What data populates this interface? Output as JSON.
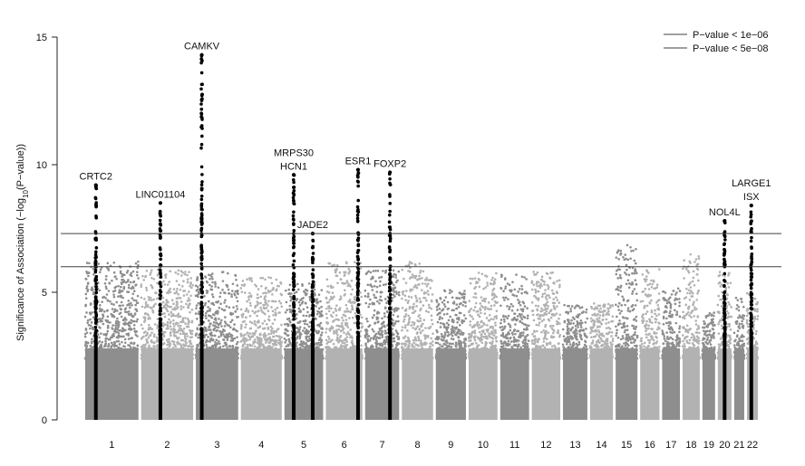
{
  "chart_data": {
    "type": "scatter",
    "subtype": "manhattan",
    "title": "",
    "xlabel": "",
    "ylabel_prefix": "Significance of Association (−log",
    "ylabel_sub": "10",
    "ylabel_suffix": "(P−value))",
    "ylim": [
      0,
      15
    ],
    "yticks": [
      0,
      5,
      10,
      15
    ],
    "thresholds": [
      {
        "label": "P−value < 1e−06",
        "value": 6.0
      },
      {
        "label": "P−value < 5e−08",
        "value": 7.3
      }
    ],
    "chromosomes": [
      {
        "label": "1",
        "rel": 249,
        "max": 6.2,
        "shade": "dark"
      },
      {
        "label": "2",
        "rel": 243,
        "max": 5.9,
        "shade": "light"
      },
      {
        "label": "3",
        "rel": 198,
        "max": 5.8,
        "shade": "dark"
      },
      {
        "label": "4",
        "rel": 191,
        "max": 5.6,
        "shade": "light"
      },
      {
        "label": "5",
        "rel": 181,
        "max": 5.4,
        "shade": "dark"
      },
      {
        "label": "6",
        "rel": 171,
        "max": 6.2,
        "shade": "light"
      },
      {
        "label": "7",
        "rel": 159,
        "max": 5.9,
        "shade": "dark"
      },
      {
        "label": "8",
        "rel": 146,
        "max": 6.2,
        "shade": "light"
      },
      {
        "label": "9",
        "rel": 141,
        "max": 5.1,
        "shade": "dark"
      },
      {
        "label": "10",
        "rel": 135,
        "max": 5.8,
        "shade": "light"
      },
      {
        "label": "11",
        "rel": 135,
        "max": 5.7,
        "shade": "dark"
      },
      {
        "label": "12",
        "rel": 133,
        "max": 5.8,
        "shade": "light"
      },
      {
        "label": "13",
        "rel": 114,
        "max": 4.5,
        "shade": "dark"
      },
      {
        "label": "14",
        "rel": 107,
        "max": 4.6,
        "shade": "light"
      },
      {
        "label": "15",
        "rel": 102,
        "max": 6.9,
        "shade": "dark"
      },
      {
        "label": "16",
        "rel": 90,
        "max": 5.9,
        "shade": "light"
      },
      {
        "label": "17",
        "rel": 83,
        "max": 5.2,
        "shade": "dark"
      },
      {
        "label": "18",
        "rel": 80,
        "max": 6.5,
        "shade": "light"
      },
      {
        "label": "19",
        "rel": 59,
        "max": 4.2,
        "shade": "dark"
      },
      {
        "label": "20",
        "rel": 64,
        "max": 5.8,
        "shade": "light"
      },
      {
        "label": "21",
        "rel": 47,
        "max": 4.8,
        "shade": "dark"
      },
      {
        "label": "22",
        "rel": 51,
        "max": 5.0,
        "shade": "light"
      }
    ],
    "tick_labels": [
      "1",
      "2",
      "3",
      "4",
      "5",
      "6",
      "7",
      "8",
      "9",
      "10",
      "11",
      "12",
      "13",
      "14",
      "15",
      "16",
      "17",
      "18",
      "19",
      "20",
      "21",
      "22"
    ],
    "highlighted_loci": [
      {
        "gene": "CRTC2",
        "chromosome": "1",
        "pos_frac": 0.2,
        "peak": 9.2
      },
      {
        "gene": "LINC01104",
        "chromosome": "2",
        "pos_frac": 0.37,
        "peak": 8.5
      },
      {
        "gene": "CAMKV",
        "chromosome": "3",
        "pos_frac": 0.14,
        "peak": 14.3
      },
      {
        "gene": "MRPS30\nHCN1",
        "chromosome": "5",
        "pos_frac": 0.24,
        "peak": 9.6
      },
      {
        "gene": "JADE2",
        "chromosome": "5",
        "pos_frac": 0.73,
        "peak": 7.3
      },
      {
        "gene": "ESR1",
        "chromosome": "6",
        "pos_frac": 0.88,
        "peak": 9.8
      },
      {
        "gene": "FOXP2",
        "chromosome": "7",
        "pos_frac": 0.73,
        "peak": 9.7
      },
      {
        "gene": "NOL4L",
        "chromosome": "20",
        "pos_frac": 0.5,
        "peak": 7.8
      },
      {
        "gene": "LARGE1\nISX",
        "chromosome": "22",
        "pos_frac": 0.4,
        "peak": 8.4
      }
    ],
    "colors": {
      "light": "#b2b2b2",
      "dark": "#8e8e8e",
      "highlight": "#000000",
      "line": "#404040"
    }
  }
}
